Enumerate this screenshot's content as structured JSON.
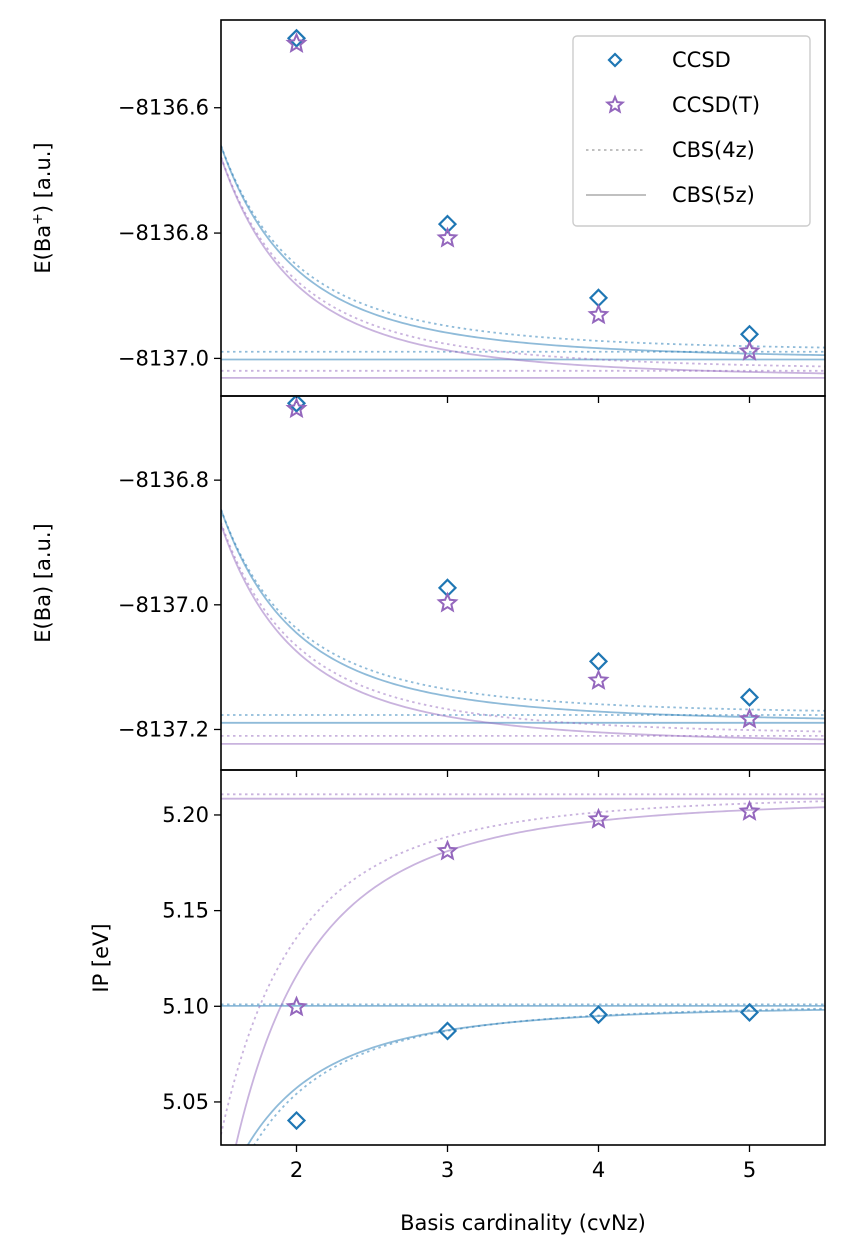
{
  "chart_data": {
    "type": "line",
    "figure": "Extrapolation to the complete basis set limit for Ba and Ba+",
    "x_label": "Basis cardinality (cvNz)",
    "xlim": [
      1.5,
      5.5
    ],
    "x_ticks": [
      2,
      3,
      4,
      5
    ],
    "x_tick_labels": [
      "2",
      "3",
      "4",
      "5"
    ],
    "colors": {
      "ccsd": "#1f77b4",
      "ccsdt": "#9467bd",
      "legend_line": "#c0c0c0",
      "axes": "#000000"
    },
    "legend": {
      "placement": "top-right",
      "entries": [
        {
          "key": "ccsd",
          "label": "CCSD",
          "marker": "diamond"
        },
        {
          "key": "ccsdt",
          "label": "CCSD(T)",
          "marker": "star"
        },
        {
          "key": "cbs4",
          "label": "CBS(4z)",
          "line": "dotted"
        },
        {
          "key": "cbs5",
          "label": "CBS(5z)",
          "line": "solid"
        }
      ]
    },
    "panels": [
      {
        "id": "ba-plus",
        "y_label_text": "E(Ba",
        "y_label_sup": "+",
        "y_label_tail": ") [a.u.]",
        "ylim": [
          -8137.06,
          -8136.46
        ],
        "y_ticks": [
          -8136.6,
          -8136.8,
          -8137.0
        ],
        "y_tick_labels": [
          "−8136.6",
          "−8136.8",
          "−8137.0"
        ],
        "series": [
          {
            "key": "ccsd",
            "name": "CCSD",
            "x": [
              2,
              3,
              4,
              5
            ],
            "y": [
              -8136.4892,
              -8136.7857,
              -8136.9034,
              -8136.9615
            ],
            "cbs4": {
              "limit": -8136.9894,
              "A": 1.11
            },
            "cbs5": {
              "limit": -8137.0017,
              "A": 1.15
            }
          },
          {
            "key": "ccsdt",
            "name": "CCSD(T)",
            "x": [
              2,
              3,
              4,
              5
            ],
            "y": [
              -8136.4977,
              -8136.8083,
              -8136.9306,
              -8136.9889
            ],
            "cbs4": {
              "limit": -8137.0198,
              "A": 1.152
            },
            "cbs5": {
              "limit": -8137.0311,
              "A": 1.188
            }
          }
        ]
      },
      {
        "id": "ba",
        "y_label_text": "E(Ba) [a.u.]",
        "y_label_sup": "",
        "y_label_tail": "",
        "ylim": [
          -8137.265,
          -8136.665
        ],
        "y_ticks": [
          -8136.8,
          -8137.0,
          -8137.2
        ],
        "y_tick_labels": [
          "−8136.8",
          "−8137.0",
          "−8137.2"
        ],
        "series": [
          {
            "key": "ccsd",
            "name": "CCSD",
            "x": [
              2,
              3,
              4,
              5
            ],
            "y": [
              -8136.6767,
              -8136.9728,
              -8137.0908,
              -8137.1484
            ],
            "cbs4": {
              "limit": -8137.1768,
              "A": 1.113
            },
            "cbs5": {
              "limit": -8137.1893,
              "A": 1.154
            }
          },
          {
            "key": "ccsdt",
            "name": "CCSD(T)",
            "x": [
              2,
              3,
              4,
              5
            ],
            "y": [
              -8136.6854,
              -8136.9972,
              -8137.1215,
              -8137.1833
            ],
            "cbs4": {
              "limit": -8137.2102,
              "A": 1.155
            },
            "cbs5": {
              "limit": -8137.2231,
              "A": 1.188
            }
          }
        ]
      },
      {
        "id": "ip",
        "y_label_text": "IP [eV]",
        "y_label_sup": "",
        "y_label_tail": "",
        "ylim": [
          5.0275,
          5.2235
        ],
        "y_ticks": [
          5.05,
          5.1,
          5.15,
          5.2
        ],
        "y_tick_labels": [
          "5.05",
          "5.10",
          "5.15",
          "5.20"
        ],
        "series": [
          {
            "key": "ccsd",
            "name": "CCSD",
            "x": [
              2,
              3,
              4,
              5
            ],
            "y": [
              5.0403,
              5.0871,
              5.0956,
              5.0968
            ],
            "cbs4": {
              "limit": 5.101,
              "A": -0.374
            },
            "cbs5": {
              "limit": 5.1002,
              "A": -0.343
            }
          },
          {
            "key": "ccsdt",
            "name": "CCSD(T)",
            "x": [
              2,
              3,
              4,
              5
            ],
            "y": [
              5.0996,
              5.1811,
              5.1977,
              5.2018
            ],
            "cbs4": {
              "limit": 5.2108,
              "A": -0.6
            },
            "cbs5": {
              "limit": 5.2085,
              "A": -0.74
            }
          }
        ]
      }
    ]
  }
}
